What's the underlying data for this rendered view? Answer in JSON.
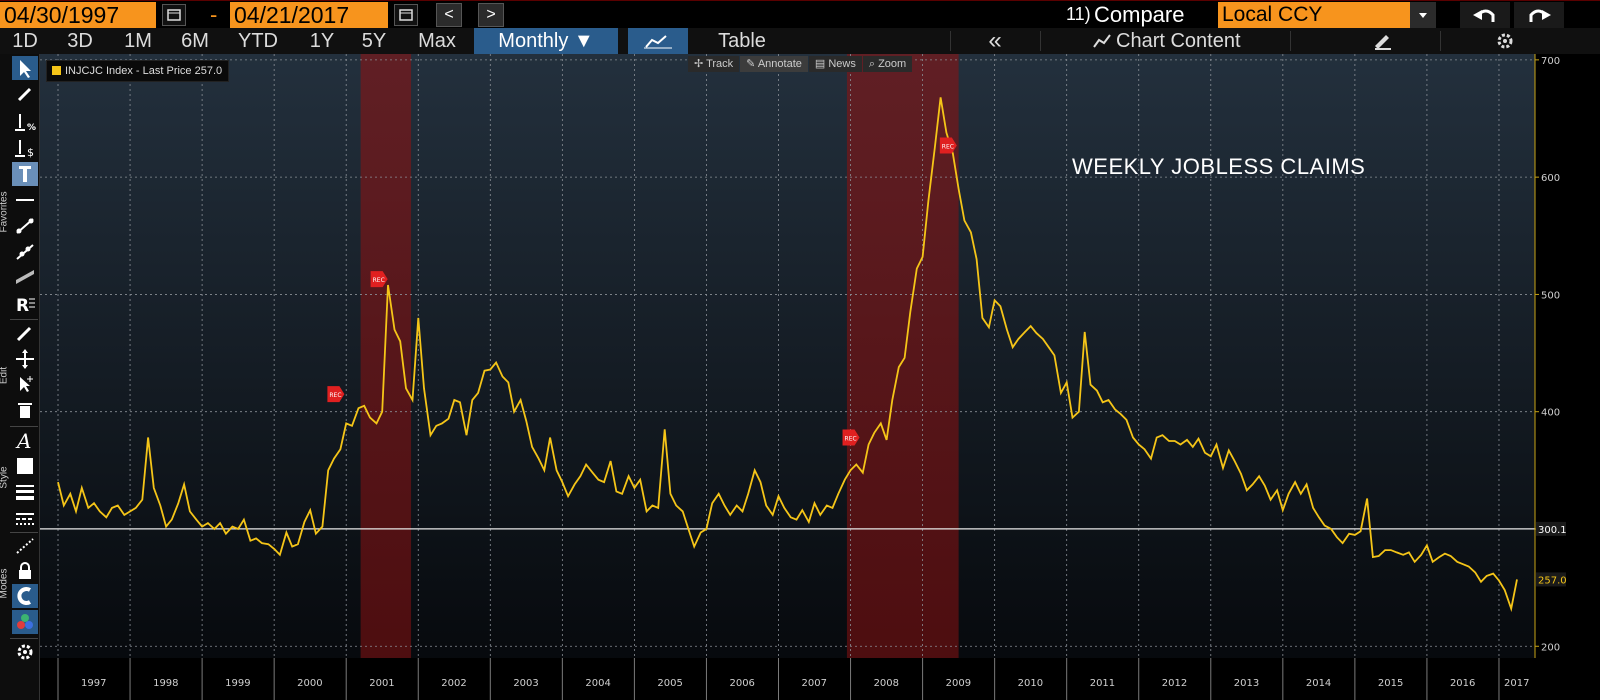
{
  "toolbar": {
    "start_date": "04/30/1997",
    "dash": "-",
    "end_date": "04/21/2017",
    "compare_num": "11)",
    "compare_label": "Compare",
    "currency_value": "Local CCY",
    "prev_label": "<",
    "next_label": ">"
  },
  "periods": [
    "1D",
    "3D",
    "1M",
    "6M",
    "YTD",
    "1Y",
    "5Y",
    "Max"
  ],
  "frequency": "Monthly ▼",
  "view_table_label": "Table",
  "collapse_label": "«",
  "chart_content_label": "Chart Content",
  "side_labels": {
    "favorites": "Favorites",
    "edit": "Edit",
    "style": "Style",
    "modes": "Modes"
  },
  "chart_tools": {
    "track": "Track",
    "annotate": "Annotate",
    "news": "News",
    "zoom": "Zoom"
  },
  "legend_text": "INJCJC Index - Last Price 257.0",
  "annotation": "WEEKLY JOBLESS CLAIMS",
  "colors": {
    "accent": "#f7941d",
    "series": "#f5c518",
    "recession": "#8b1a1a",
    "active_tab": "#2a5c8c"
  },
  "chart_data": {
    "type": "line",
    "series": [
      {
        "name": "INJCJC Index - Last Price",
        "x": [
          1997.0,
          1997.08,
          1997.17,
          1997.25,
          1997.33,
          1997.42,
          1997.5,
          1997.58,
          1997.67,
          1997.75,
          1997.83,
          1997.92,
          1998.0,
          1998.08,
          1998.17,
          1998.25,
          1998.33,
          1998.42,
          1998.5,
          1998.58,
          1998.67,
          1998.75,
          1998.83,
          1998.92,
          1999.0,
          1999.08,
          1999.17,
          1999.25,
          1999.33,
          1999.42,
          1999.5,
          1999.58,
          1999.67,
          1999.75,
          1999.83,
          1999.92,
          2000.0,
          2000.08,
          2000.17,
          2000.25,
          2000.33,
          2000.42,
          2000.5,
          2000.58,
          2000.67,
          2000.75,
          2000.83,
          2000.92,
          2001.0,
          2001.08,
          2001.17,
          2001.25,
          2001.33,
          2001.42,
          2001.5,
          2001.58,
          2001.67,
          2001.75,
          2001.83,
          2001.92,
          2002.0,
          2002.08,
          2002.17,
          2002.25,
          2002.33,
          2002.42,
          2002.5,
          2002.58,
          2002.67,
          2002.75,
          2002.83,
          2002.92,
          2003.0,
          2003.08,
          2003.17,
          2003.25,
          2003.33,
          2003.42,
          2003.5,
          2003.58,
          2003.67,
          2003.75,
          2003.83,
          2003.92,
          2004.0,
          2004.08,
          2004.17,
          2004.25,
          2004.33,
          2004.42,
          2004.5,
          2004.58,
          2004.67,
          2004.75,
          2004.83,
          2004.92,
          2005.0,
          2005.08,
          2005.17,
          2005.25,
          2005.33,
          2005.42,
          2005.5,
          2005.58,
          2005.67,
          2005.75,
          2005.83,
          2005.92,
          2006.0,
          2006.08,
          2006.17,
          2006.25,
          2006.33,
          2006.42,
          2006.5,
          2006.58,
          2006.67,
          2006.75,
          2006.83,
          2006.92,
          2007.0,
          2007.08,
          2007.17,
          2007.25,
          2007.33,
          2007.42,
          2007.5,
          2007.58,
          2007.67,
          2007.75,
          2007.83,
          2007.92,
          2008.0,
          2008.08,
          2008.17,
          2008.25,
          2008.33,
          2008.42,
          2008.5,
          2008.58,
          2008.67,
          2008.75,
          2008.83,
          2008.92,
          2009.0,
          2009.08,
          2009.17,
          2009.25,
          2009.33,
          2009.42,
          2009.5,
          2009.58,
          2009.67,
          2009.75,
          2009.83,
          2009.92,
          2010.0,
          2010.08,
          2010.17,
          2010.25,
          2010.33,
          2010.42,
          2010.5,
          2010.58,
          2010.67,
          2010.75,
          2010.83,
          2010.92,
          2011.0,
          2011.08,
          2011.17,
          2011.25,
          2011.33,
          2011.42,
          2011.5,
          2011.58,
          2011.67,
          2011.75,
          2011.83,
          2011.92,
          2012.0,
          2012.08,
          2012.17,
          2012.25,
          2012.33,
          2012.42,
          2012.5,
          2012.58,
          2012.67,
          2012.75,
          2012.83,
          2012.92,
          2013.0,
          2013.08,
          2013.17,
          2013.25,
          2013.33,
          2013.42,
          2013.5,
          2013.58,
          2013.67,
          2013.75,
          2013.83,
          2013.92,
          2014.0,
          2014.08,
          2014.17,
          2014.25,
          2014.33,
          2014.42,
          2014.5,
          2014.58,
          2014.67,
          2014.75,
          2014.83,
          2014.92,
          2015.0,
          2015.08,
          2015.17,
          2015.25,
          2015.33,
          2015.42,
          2015.5,
          2015.58,
          2015.67,
          2015.75,
          2015.83,
          2015.92,
          2016.0,
          2016.08,
          2016.17,
          2016.25,
          2016.33,
          2016.42,
          2016.5,
          2016.58,
          2016.67,
          2016.75,
          2016.83,
          2016.92,
          2017.0,
          2017.08,
          2017.17,
          2017.25
        ],
        "values": [
          340,
          320,
          330,
          315,
          335,
          318,
          322,
          315,
          310,
          318,
          320,
          312,
          315,
          318,
          325,
          378,
          335,
          320,
          302,
          308,
          322,
          338,
          315,
          308,
          302,
          305,
          300,
          305,
          296,
          302,
          300,
          308,
          290,
          292,
          288,
          287,
          283,
          278,
          297,
          285,
          287,
          306,
          316,
          296,
          302,
          350,
          360,
          368,
          390,
          388,
          403,
          405,
          395,
          390,
          400,
          508,
          470,
          460,
          420,
          410,
          480,
          420,
          380,
          388,
          390,
          394,
          410,
          408,
          380,
          410,
          416,
          435,
          436,
          442,
          430,
          425,
          400,
          410,
          392,
          370,
          360,
          350,
          378,
          350,
          340,
          328,
          338,
          345,
          355,
          348,
          342,
          340,
          358,
          332,
          330,
          345,
          335,
          342,
          315,
          320,
          318,
          385,
          330,
          320,
          315,
          300,
          285,
          297,
          300,
          322,
          330,
          320,
          312,
          320,
          315,
          330,
          350,
          340,
          320,
          312,
          328,
          318,
          310,
          308,
          316,
          306,
          322,
          312,
          320,
          318,
          330,
          342,
          350,
          355,
          348,
          372,
          382,
          390,
          376,
          410,
          438,
          446,
          485,
          522,
          532,
          580,
          625,
          668,
          638,
          620,
          590,
          563,
          553,
          530,
          480,
          472,
          495,
          490,
          470,
          455,
          462,
          468,
          473,
          467,
          462,
          455,
          448,
          416,
          425,
          395,
          400,
          468,
          423,
          418,
          408,
          410,
          402,
          398,
          393,
          378,
          372,
          368,
          360,
          378,
          380,
          375,
          375,
          372,
          376,
          370,
          377,
          365,
          362,
          372,
          352,
          367,
          358,
          347,
          333,
          338,
          345,
          337,
          325,
          333,
          316,
          330,
          340,
          330,
          338,
          318,
          310,
          303,
          300,
          293,
          288,
          296,
          295,
          298,
          326,
          276,
          277,
          282,
          282,
          280,
          278,
          280,
          272,
          278,
          286,
          272,
          276,
          279,
          277,
          272,
          270,
          268,
          263,
          255,
          260,
          262,
          256,
          248,
          232,
          257
        ],
        "color": "#f5c518"
      }
    ],
    "xlabel": "",
    "ylabel": "",
    "xlim": [
      1996.75,
      2017.5
    ],
    "ylim": [
      190,
      705
    ],
    "y_ticks": [
      200,
      300,
      400,
      500,
      600,
      700
    ],
    "x_tick_labels": [
      "1997",
      "1998",
      "1999",
      "2000",
      "2001",
      "2002",
      "2003",
      "2004",
      "2005",
      "2006",
      "2007",
      "2008",
      "2009",
      "2010",
      "2011",
      "2012",
      "2013",
      "2014",
      "2015",
      "2016",
      "2017"
    ],
    "recessions": [
      [
        2001.2,
        2001.9
      ],
      [
        2007.95,
        2009.5
      ]
    ],
    "rec_markers": [
      {
        "x": 2000.85,
        "y": 415,
        "label": "REC"
      },
      {
        "x": 2001.45,
        "y": 513,
        "label": "REC"
      },
      {
        "x": 2008.0,
        "y": 378,
        "label": "REC"
      },
      {
        "x": 2009.35,
        "y": 627,
        "label": "REC"
      }
    ],
    "reference_line": {
      "value": 300.1,
      "label": "300.1"
    },
    "last_value": {
      "value": 257.0,
      "label": "257.0"
    },
    "grid": true,
    "legend": "top-left"
  }
}
